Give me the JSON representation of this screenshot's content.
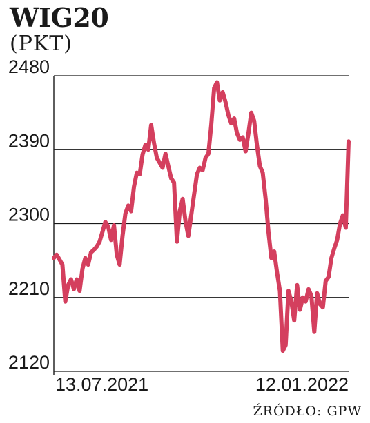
{
  "header": {
    "title": "WIG20",
    "unit": "(PKT)"
  },
  "footer": {
    "source": "ŹRÓDŁO: GPW"
  },
  "colors": {
    "line": "#d43f5e",
    "grid": "#1a1a1a",
    "text": "#1a1a1a"
  },
  "chart_data": {
    "type": "line",
    "title": "WIG20",
    "ylabel": "(PKT)",
    "xlabel": "",
    "ylim": [
      2120,
      2480
    ],
    "yticks": [
      2120,
      2210,
      2300,
      2390,
      2480
    ],
    "xticks": [
      "13.07.2021",
      "12.01.2022"
    ],
    "grid": true,
    "series": [
      {
        "values": [
          2258,
          2262,
          2256,
          2250,
          2205,
          2225,
          2232,
          2220,
          2232,
          2218,
          2245,
          2258,
          2250,
          2265,
          2268,
          2272,
          2278,
          2290,
          2302,
          2296,
          2280,
          2298,
          2262,
          2250,
          2285,
          2312,
          2322,
          2315,
          2345,
          2362,
          2360,
          2384,
          2396,
          2390,
          2420,
          2398,
          2380,
          2374,
          2368,
          2385,
          2370,
          2355,
          2350,
          2278,
          2315,
          2330,
          2303,
          2285,
          2310,
          2335,
          2360,
          2368,
          2365,
          2380,
          2385,
          2420,
          2465,
          2472,
          2450,
          2460,
          2448,
          2432,
          2422,
          2428,
          2410,
          2402,
          2405,
          2388,
          2410,
          2435,
          2425,
          2395,
          2370,
          2362,
          2330,
          2290,
          2258,
          2266,
          2240,
          2218,
          2145,
          2152,
          2218,
          2205,
          2182,
          2225,
          2195,
          2210,
          2205,
          2220,
          2212,
          2168,
          2215,
          2202,
          2198,
          2230,
          2235,
          2258,
          2270,
          2280,
          2300,
          2310,
          2295,
          2400
        ]
      }
    ]
  }
}
